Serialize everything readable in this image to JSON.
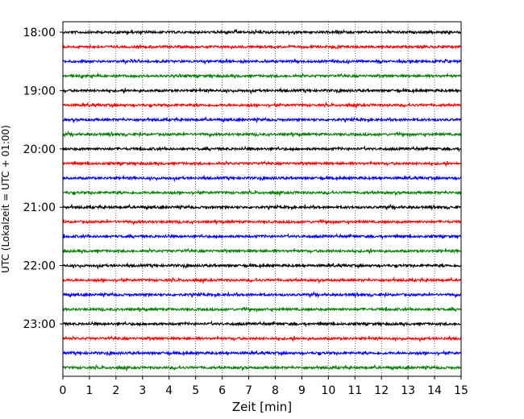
{
  "chart_data": {
    "type": "line",
    "title": "",
    "xlabel": "Zeit  [min]",
    "ylabel": "UTC (Lokalzeit = UTC + 01:00)",
    "xlim": [
      0,
      15
    ],
    "x_ticks": [
      0,
      1,
      2,
      3,
      4,
      5,
      6,
      7,
      8,
      9,
      10,
      11,
      12,
      13,
      14,
      15
    ],
    "x_tick_labels": [
      "0",
      "1",
      "2",
      "3",
      "4",
      "5",
      "6",
      "7",
      "8",
      "9",
      "10",
      "11",
      "12",
      "13",
      "14",
      "15"
    ],
    "y_tick_labels": [
      "18:00",
      "19:00",
      "20:00",
      "21:00",
      "22:00",
      "23:00"
    ],
    "vertical_grid": "dotted",
    "trace_colors": [
      "#000000",
      "#ff0000",
      "#0000ff",
      "#008000"
    ],
    "trace_count": 24,
    "traces": [
      {
        "start": "18:00",
        "color": "#000000"
      },
      {
        "start": "18:15",
        "color": "#ff0000"
      },
      {
        "start": "18:30",
        "color": "#0000ff"
      },
      {
        "start": "18:45",
        "color": "#008000"
      },
      {
        "start": "19:00",
        "color": "#000000"
      },
      {
        "start": "19:15",
        "color": "#ff0000"
      },
      {
        "start": "19:30",
        "color": "#0000ff"
      },
      {
        "start": "19:45",
        "color": "#008000"
      },
      {
        "start": "20:00",
        "color": "#000000"
      },
      {
        "start": "20:15",
        "color": "#ff0000"
      },
      {
        "start": "20:30",
        "color": "#0000ff"
      },
      {
        "start": "20:45",
        "color": "#008000"
      },
      {
        "start": "21:00",
        "color": "#000000"
      },
      {
        "start": "21:15",
        "color": "#ff0000"
      },
      {
        "start": "21:30",
        "color": "#0000ff"
      },
      {
        "start": "21:45",
        "color": "#008000"
      },
      {
        "start": "22:00",
        "color": "#000000"
      },
      {
        "start": "22:15",
        "color": "#ff0000"
      },
      {
        "start": "22:30",
        "color": "#0000ff"
      },
      {
        "start": "22:45",
        "color": "#008000"
      },
      {
        "start": "23:00",
        "color": "#000000"
      },
      {
        "start": "23:15",
        "color": "#ff0000"
      },
      {
        "start": "23:30",
        "color": "#0000ff"
      },
      {
        "start": "23:45",
        "color": "#008000"
      }
    ]
  }
}
